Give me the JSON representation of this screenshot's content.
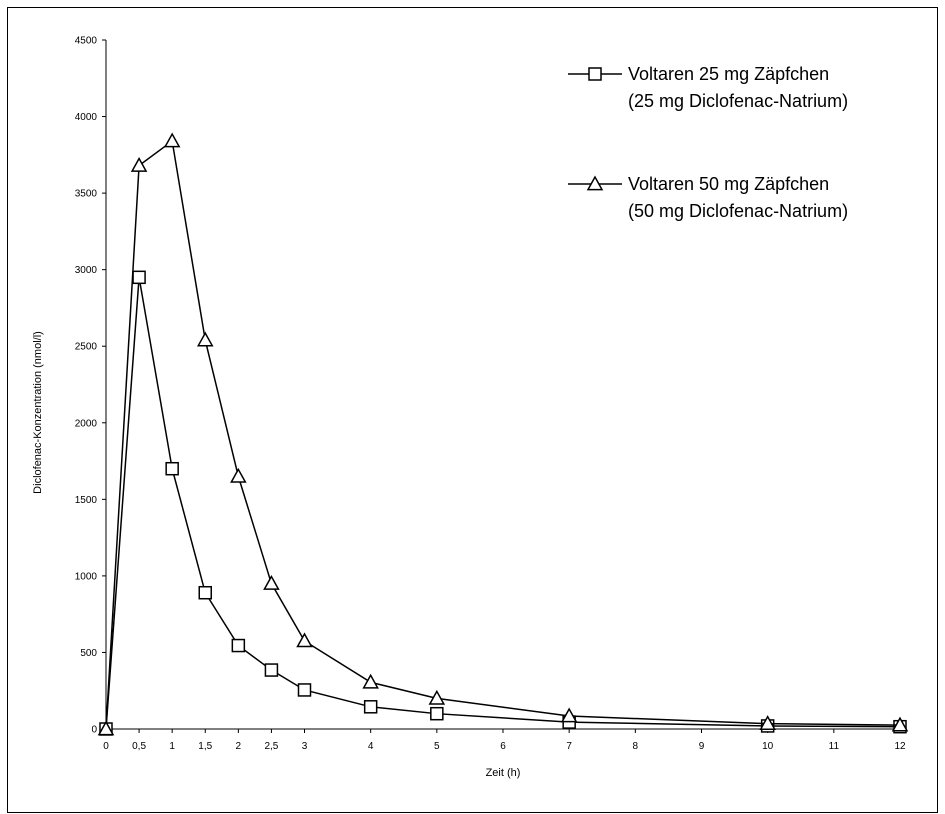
{
  "chart_data": {
    "type": "line",
    "title": "",
    "xlabel": "Zeit (h)",
    "ylabel": "Diclofenac-Konzentration (nmol/l)",
    "xlim": [
      0,
      12
    ],
    "ylim": [
      0,
      4500
    ],
    "x_ticks": [
      0,
      0.5,
      1,
      1.5,
      2,
      2.5,
      3,
      4,
      5,
      6,
      7,
      8,
      9,
      10,
      11,
      12
    ],
    "x_tick_labels": [
      "0",
      "0,5",
      "1",
      "1,5",
      "2",
      "2,5",
      "3",
      "4",
      "5",
      "6",
      "7",
      "8",
      "9",
      "10",
      "11",
      "12"
    ],
    "y_ticks": [
      0,
      500,
      1000,
      1500,
      2000,
      2500,
      3000,
      3500,
      4000,
      4500
    ],
    "y_tick_labels": [
      "0",
      "500",
      "1000",
      "1500",
      "2000",
      "2500",
      "3000",
      "3500",
      "4000",
      "4500"
    ],
    "grid": false,
    "legend_position": "top-right",
    "series": [
      {
        "name_line1": "Voltaren 25 mg Zäpfchen",
        "name_line2": "(25 mg Diclofenac-Natrium)",
        "marker": "square",
        "color": "#000000",
        "x": [
          0,
          0.5,
          1,
          1.5,
          2,
          2.5,
          3,
          4,
          5,
          7,
          10,
          12
        ],
        "y": [
          0,
          2950,
          1700,
          890,
          545,
          385,
          255,
          145,
          100,
          45,
          20,
          15
        ]
      },
      {
        "name_line1": "Voltaren 50 mg Zäpfchen",
        "name_line2": "(50 mg Diclofenac-Natrium)",
        "marker": "triangle",
        "color": "#000000",
        "x": [
          0,
          0.5,
          1,
          1.5,
          2,
          2.5,
          3,
          4,
          5,
          7,
          10,
          12
        ],
        "y": [
          0,
          3680,
          3840,
          2540,
          1650,
          950,
          575,
          305,
          200,
          85,
          35,
          25
        ]
      }
    ]
  }
}
